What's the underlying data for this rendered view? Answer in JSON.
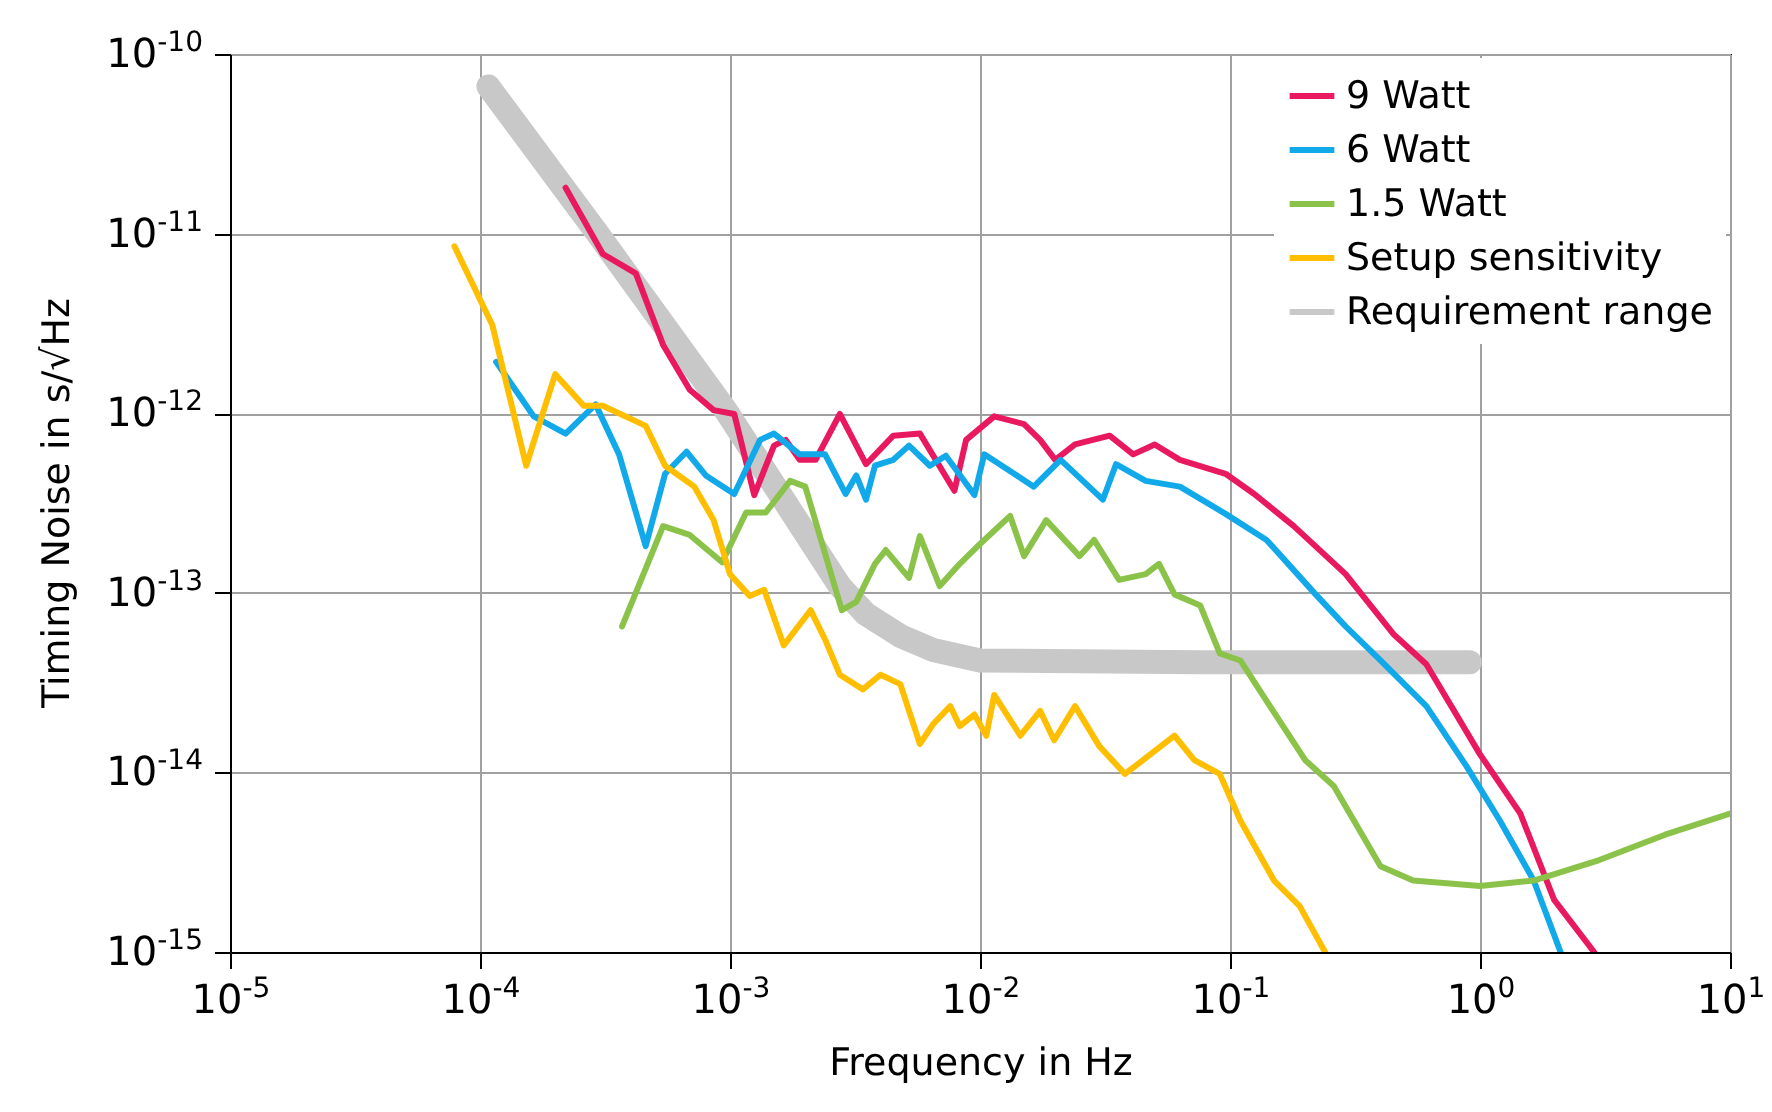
{
  "chart_data": {
    "type": "line",
    "xlabel": "Frequency in Hz",
    "ylabel": "Timing Noise in s/√Hz",
    "log": "xy",
    "grid": true,
    "legend": "top right",
    "xlim": [
      1e-05,
      10
    ],
    "ylim": [
      1e-15,
      1e-10
    ],
    "xticks": [
      {
        "value": 1e-05,
        "label": "10$^{-5}$"
      },
      {
        "value": 0.0001,
        "label": "10$^{-4}$"
      },
      {
        "value": 0.001,
        "label": "10$^{-3}$"
      },
      {
        "value": 0.01,
        "label": "10$^{-2}$"
      },
      {
        "value": 0.1,
        "label": "10$^{-1}$"
      },
      {
        "value": 1,
        "label": "10$^{0}$"
      },
      {
        "value": 10,
        "label": "10$^{1}$"
      }
    ],
    "yticks": [
      {
        "value": 1e-15,
        "label": "10$^{-15}$"
      },
      {
        "value": 1e-14,
        "label": "10$^{-14}$"
      },
      {
        "value": 1e-13,
        "label": "10$^{-13}$"
      },
      {
        "value": 1e-12,
        "label": "10$^{-12}$"
      },
      {
        "value": 1e-11,
        "label": "10$^{-11}$"
      },
      {
        "value": 1e-10,
        "label": "10$^{-10}$"
      }
    ],
    "series": [
      {
        "name": "9 Watt",
        "color": "#e8195f",
        "x": [
          0.00022,
          0.00031,
          0.00042,
          0.00054,
          0.00069,
          0.00086,
          0.00104,
          0.00125,
          0.0015,
          0.00167,
          0.0019,
          0.0022,
          0.00275,
          0.0035,
          0.0045,
          0.00575,
          0.0079,
          0.0088,
          0.0114,
          0.015,
          0.0174,
          0.02,
          0.024,
          0.033,
          0.041,
          0.05,
          0.063,
          0.096,
          0.125,
          0.18,
          0.29,
          0.45,
          0.61,
          1.0,
          1.45,
          1.98,
          2.86
        ],
        "values": [
          1.8e-11,
          7.7e-12,
          6e-12,
          2.4e-12,
          1.35e-12,
          1.04e-12,
          9.9e-13,
          3.5e-13,
          6.6e-13,
          7.1e-13,
          5.5e-13,
          5.5e-13,
          9.9e-13,
          5.2e-13,
          7.5e-13,
          7.7e-13,
          3.7e-13,
          7.1e-13,
          9.6e-13,
          8.7e-13,
          7.1e-13,
          5.5e-13,
          6.7e-13,
          7.5e-13,
          5.9e-13,
          6.7e-13,
          5.5e-13,
          4.6e-13,
          3.55e-13,
          2.35e-13,
          1.27e-13,
          5.9e-14,
          4e-14,
          1.26e-14,
          5.9e-15,
          1.95e-15,
          1e-15
        ]
      },
      {
        "name": "6 Watt",
        "color": "#12a9ea",
        "x": [
          0.000116,
          0.000164,
          0.00022,
          0.00029,
          0.00036,
          0.00046,
          0.00055,
          0.00067,
          0.0008,
          0.00104,
          0.00132,
          0.0015,
          0.0019,
          0.0024,
          0.0029,
          0.0032,
          0.0035,
          0.0038,
          0.0045,
          0.0052,
          0.0063,
          0.0073,
          0.0095,
          0.0104,
          0.0137,
          0.0164,
          0.021,
          0.031,
          0.035,
          0.046,
          0.063,
          0.096,
          0.14,
          0.22,
          0.29,
          0.4,
          0.61,
          0.88,
          1.2,
          1.64,
          2.1
        ],
        "values": [
          1.93e-12,
          9.6e-13,
          7.7e-13,
          1.12e-12,
          5.9e-13,
          1.82e-13,
          4.6e-13,
          6.1e-13,
          4.5e-13,
          3.55e-13,
          7.1e-13,
          7.7e-13,
          5.9e-13,
          5.9e-13,
          3.55e-13,
          4.5e-13,
          3.3e-13,
          5.1e-13,
          5.5e-13,
          6.6e-13,
          5.1e-13,
          5.8e-13,
          3.5e-13,
          5.9e-13,
          4.6e-13,
          3.9e-13,
          5.5e-13,
          3.3e-13,
          5.2e-13,
          4.2e-13,
          3.9e-13,
          2.75e-13,
          1.97e-13,
          9.8e-14,
          6.5e-14,
          4.2e-14,
          2.34e-14,
          1.09e-14,
          5.4e-15,
          2.5e-15,
          1e-15
        ]
      },
      {
        "name": "1.5 Watt",
        "color": "#8bc34a",
        "x": [
          0.00037,
          0.00054,
          0.00069,
          0.00093,
          0.00116,
          0.00139,
          0.00174,
          0.002,
          0.0028,
          0.0032,
          0.0038,
          0.0042,
          0.0052,
          0.00575,
          0.0069,
          0.0083,
          0.01,
          0.0132,
          0.015,
          0.0184,
          0.025,
          0.0286,
          0.036,
          0.046,
          0.052,
          0.06,
          0.076,
          0.091,
          0.11,
          0.14,
          0.2,
          0.26,
          0.4,
          0.54,
          1,
          1.64,
          3,
          5.5,
          10
        ],
        "values": [
          6.5e-14,
          2.35e-13,
          2.1e-13,
          1.48e-13,
          2.8e-13,
          2.8e-13,
          4.2e-13,
          3.9e-13,
          8e-14,
          8.9e-14,
          1.45e-13,
          1.73e-13,
          1.21e-13,
          2.07e-13,
          1.09e-13,
          1.45e-13,
          1.87e-13,
          2.68e-13,
          1.6e-13,
          2.54e-13,
          1.6e-13,
          1.97e-13,
          1.18e-13,
          1.27e-13,
          1.45e-13,
          9.8e-14,
          8.5e-14,
          4.6e-14,
          4.2e-14,
          2.5e-14,
          1.17e-14,
          8.4e-15,
          3e-15,
          2.5e-15,
          2.33e-15,
          2.5e-15,
          3.25e-15,
          4.5e-15,
          5.9e-15
        ]
      },
      {
        "name": "Setup sensitivity",
        "color": "#ffbf00",
        "x": [
          7.9e-05,
          0.000112,
          0.000153,
          0.0002,
          0.00026,
          0.00031,
          0.00046,
          0.00055,
          0.00072,
          0.00086,
          0.001,
          0.0012,
          0.00137,
          0.00164,
          0.0021,
          0.0024,
          0.00275,
          0.0034,
          0.004,
          0.0048,
          0.00575,
          0.0065,
          0.0076,
          0.0083,
          0.0095,
          0.0106,
          0.0114,
          0.0145,
          0.0174,
          0.0198,
          0.024,
          0.03,
          0.038,
          0.06,
          0.072,
          0.091,
          0.11,
          0.15,
          0.19,
          0.24
        ],
        "values": [
          8.5e-12,
          3.1e-12,
          5.1e-13,
          1.65e-12,
          1.1e-12,
          1.1e-12,
          8.5e-13,
          5.1e-13,
          3.9e-13,
          2.54e-13,
          1.27e-13,
          9.6e-14,
          1.04e-13,
          5.1e-14,
          8e-14,
          5.5e-14,
          3.5e-14,
          2.9e-14,
          3.5e-14,
          3.1e-14,
          1.44e-14,
          1.86e-14,
          2.34e-14,
          1.81e-14,
          2.1e-14,
          1.6e-14,
          2.7e-14,
          1.6e-14,
          2.2e-14,
          1.51e-14,
          2.34e-14,
          1.4e-14,
          9.8e-15,
          1.6e-14,
          1.17e-14,
          9.8e-15,
          5.4e-15,
          2.5e-15,
          1.8e-15,
          1e-15
        ]
      },
      {
        "name": "Requirement range",
        "color": "#c8c8c8",
        "x": [
          0.000108,
          0.0003,
          0.00096,
          0.0019,
          0.00275,
          0.0035,
          0.0048,
          0.0065,
          0.01,
          0.076,
          0.91
        ],
        "values": [
          6.6e-11,
          9.7e-12,
          1.04e-12,
          2.4e-13,
          1.09e-13,
          7.6e-14,
          5.75e-14,
          4.8e-14,
          4.2e-14,
          4.1e-14,
          4.1e-14
        ]
      }
    ]
  }
}
